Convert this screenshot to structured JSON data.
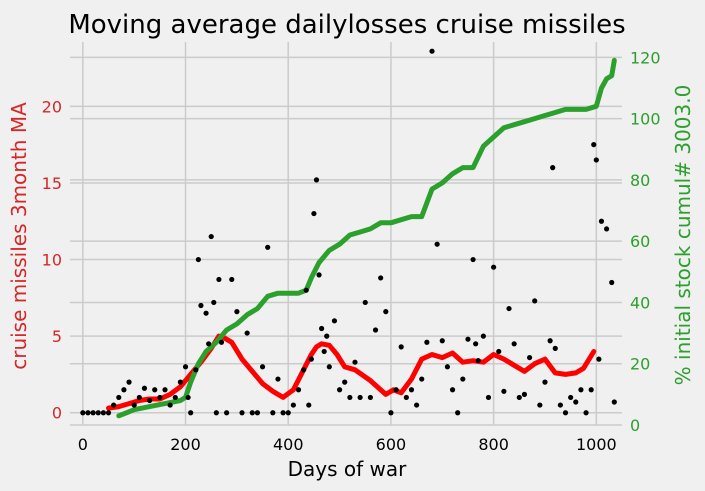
{
  "chart_data": {
    "type": "line",
    "title": "Moving average dailylosses cruise missiles",
    "xlabel": "Days of war",
    "ylabel_left": "cruise missiles 3month MA",
    "ylabel_right": "% initial stock cumul# 3003.0",
    "xlim": [
      -25,
      1050
    ],
    "ylim_left": [
      -0.8,
      24.2
    ],
    "ylim_right": [
      0,
      125
    ],
    "x_ticks": [
      0,
      200,
      400,
      600,
      800,
      1000
    ],
    "y_left_ticks": [
      0,
      5,
      10,
      15,
      20
    ],
    "y_right_ticks": [
      0,
      20,
      40,
      60,
      80,
      100,
      120
    ],
    "grid": true,
    "colors": {
      "ma": "#ff0000",
      "cumul": "#2ca02c",
      "daily": "#000000",
      "left_axis": "#d62728",
      "right_axis": "#2ca02c",
      "background": "#f0f0f0"
    },
    "series": [
      {
        "name": "",
        "axis": "left",
        "style": "line",
        "color": "#ff0000",
        "x": [
          50,
          70,
          90,
          110,
          130,
          150,
          170,
          190,
          210,
          230,
          250,
          265,
          275,
          290,
          310,
          330,
          350,
          370,
          390,
          410,
          430,
          445,
          455,
          465,
          480,
          495,
          510,
          530,
          560,
          590,
          605,
          620,
          640,
          660,
          680,
          700,
          720,
          740,
          760,
          780,
          800,
          820,
          840,
          860,
          880,
          900,
          920,
          940,
          960,
          975,
          995
        ],
        "y": [
          0.3,
          0.4,
          0.6,
          0.8,
          0.9,
          0.9,
          1.2,
          1.7,
          2.5,
          3.3,
          4.2,
          5.0,
          4.9,
          4.6,
          3.5,
          2.7,
          1.9,
          1.4,
          1.0,
          1.5,
          2.8,
          3.8,
          4.3,
          4.5,
          4.4,
          3.8,
          3.0,
          2.8,
          2.1,
          1.2,
          1.5,
          1.3,
          2.2,
          3.5,
          3.8,
          3.6,
          3.9,
          3.3,
          3.4,
          3.3,
          3.8,
          3.5,
          3.1,
          2.7,
          3.2,
          3.5,
          2.6,
          2.5,
          2.6,
          2.9,
          4.0
        ]
      },
      {
        "name": "",
        "axis": "right",
        "style": "line",
        "color": "#2ca02c",
        "x": [
          70,
          100,
          130,
          160,
          190,
          200,
          210,
          225,
          240,
          260,
          280,
          300,
          320,
          340,
          360,
          380,
          400,
          420,
          435,
          445,
          460,
          480,
          500,
          520,
          540,
          560,
          580,
          600,
          620,
          640,
          660,
          680,
          700,
          720,
          740,
          760,
          780,
          800,
          820,
          840,
          860,
          880,
          900,
          920,
          940,
          960,
          980,
          1000,
          1010,
          1020,
          1030,
          1035
        ],
        "y": [
          3,
          5,
          6,
          7,
          8,
          9,
          14,
          20,
          24,
          27,
          31,
          33,
          36,
          38,
          42,
          43,
          43,
          43,
          44,
          48,
          53,
          57,
          59,
          62,
          63,
          64,
          66,
          66,
          67,
          68,
          68,
          77,
          79,
          82,
          84,
          84,
          91,
          94,
          97,
          98,
          99,
          100,
          101,
          102,
          103,
          103,
          103,
          104,
          110,
          113,
          114,
          119
        ]
      },
      {
        "name": "",
        "axis": "left",
        "style": "scatter",
        "color": "#000000",
        "x": [
          0,
          10,
          20,
          30,
          40,
          50,
          60,
          70,
          80,
          90,
          100,
          110,
          120,
          130,
          140,
          150,
          160,
          170,
          180,
          190,
          200,
          205,
          210,
          220,
          225,
          230,
          240,
          245,
          250,
          255,
          260,
          265,
          270,
          280,
          290,
          300,
          310,
          320,
          330,
          340,
          350,
          360,
          370,
          380,
          390,
          400,
          410,
          420,
          430,
          435,
          440,
          445,
          450,
          455,
          460,
          465,
          470,
          475,
          480,
          490,
          500,
          510,
          520,
          530,
          540,
          550,
          560,
          570,
          580,
          590,
          600,
          610,
          620,
          630,
          640,
          650,
          660,
          670,
          680,
          690,
          700,
          710,
          720,
          730,
          740,
          750,
          760,
          765,
          770,
          780,
          790,
          800,
          810,
          820,
          830,
          840,
          850,
          860,
          870,
          880,
          890,
          900,
          910,
          915,
          920,
          930,
          940,
          950,
          960,
          970,
          980,
          990,
          995,
          1000,
          1005,
          1010,
          1020,
          1030,
          1035
        ],
        "y": [
          0,
          0,
          0,
          0,
          0,
          0,
          0.5,
          1,
          1.5,
          2,
          0.5,
          1,
          1.6,
          0.8,
          1.5,
          1,
          1.5,
          0.5,
          1,
          2,
          3,
          1,
          0,
          2.8,
          10,
          7,
          6.5,
          4.5,
          11.5,
          7.2,
          0,
          8.7,
          4.6,
          0,
          8.7,
          6.6,
          0,
          5.2,
          0,
          0,
          3,
          10.8,
          0,
          2.2,
          0,
          0,
          0.5,
          1.5,
          2.8,
          8,
          0.5,
          3.5,
          13,
          15.2,
          9,
          5.5,
          4,
          5,
          3,
          6,
          1.5,
          2,
          1,
          3.3,
          1,
          7.2,
          1,
          5.4,
          8.8,
          6.6,
          0,
          1.5,
          4.3,
          1,
          1.5,
          0.5,
          2.2,
          4.6,
          23.6,
          11,
          4.7,
          3,
          1.5,
          0,
          2.2,
          4.8,
          10,
          4.5,
          3.4,
          5,
          1,
          9.5,
          4,
          1.4,
          6.8,
          4.5,
          1,
          1.2,
          3.6,
          7.3,
          0.5,
          2,
          4.7,
          16,
          4.2,
          0.5,
          0,
          1,
          0.7,
          1.5,
          0,
          1.5,
          17.5,
          16.5,
          3.5,
          12.5,
          12,
          8.5,
          0.7
        ]
      }
    ]
  }
}
